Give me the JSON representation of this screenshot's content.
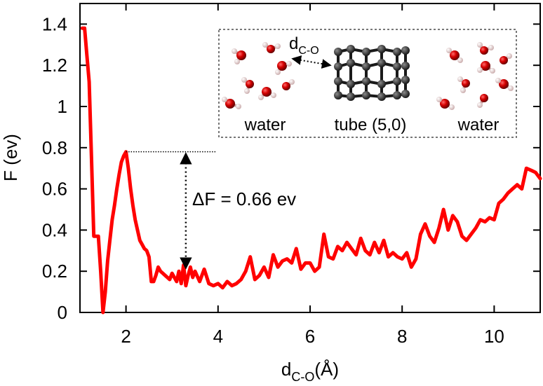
{
  "chart_data": {
    "type": "line",
    "title": "",
    "xlabel_main": "d",
    "xlabel_sub": "C-O",
    "xlabel_unit": "(Å)",
    "ylabel": "F (ev)",
    "xlim": [
      1.0,
      11.0
    ],
    "ylim": [
      0.0,
      1.5
    ],
    "xticks": [
      2,
      4,
      6,
      8,
      10
    ],
    "yticks": [
      0,
      0.2,
      0.4,
      0.6,
      0.8,
      1,
      1.2,
      1.4
    ],
    "xtick_labels": [
      "2",
      "4",
      "6",
      "8",
      "10"
    ],
    "ytick_labels": [
      "0",
      "0.2",
      "0.4",
      "0.6",
      "0.8",
      "1",
      "1.2",
      "1.4"
    ],
    "line_color": "#ff0000",
    "series": [
      {
        "name": "F",
        "x": [
          1.05,
          1.1,
          1.15,
          1.2,
          1.25,
          1.3,
          1.35,
          1.4,
          1.45,
          1.5,
          1.55,
          1.6,
          1.65,
          1.7,
          1.75,
          1.8,
          1.85,
          1.9,
          1.95,
          2.0,
          2.05,
          2.1,
          2.15,
          2.2,
          2.25,
          2.3,
          2.35,
          2.4,
          2.45,
          2.5,
          2.55,
          2.6,
          2.65,
          2.7,
          2.75,
          2.8,
          2.85,
          2.9,
          2.95,
          3.0,
          3.05,
          3.1,
          3.15,
          3.2,
          3.25,
          3.3,
          3.35,
          3.4,
          3.45,
          3.5,
          3.6,
          3.7,
          3.8,
          3.9,
          4.0,
          4.1,
          4.2,
          4.3,
          4.4,
          4.5,
          4.6,
          4.7,
          4.8,
          4.9,
          5.0,
          5.1,
          5.2,
          5.3,
          5.4,
          5.5,
          5.6,
          5.7,
          5.8,
          5.9,
          6.0,
          6.1,
          6.2,
          6.3,
          6.4,
          6.5,
          6.6,
          6.7,
          6.8,
          6.9,
          7.0,
          7.1,
          7.2,
          7.3,
          7.4,
          7.5,
          7.6,
          7.7,
          7.8,
          7.9,
          8.0,
          8.1,
          8.2,
          8.3,
          8.4,
          8.5,
          8.6,
          8.7,
          8.8,
          8.9,
          9.0,
          9.1,
          9.2,
          9.3,
          9.4,
          9.5,
          9.6,
          9.7,
          9.8,
          9.9,
          10.0,
          10.1,
          10.2,
          10.3,
          10.4,
          10.5,
          10.6,
          10.7,
          10.8,
          10.9,
          11.0
        ],
        "y": [
          1.38,
          1.38,
          1.25,
          1.12,
          0.75,
          0.37,
          0.37,
          0.37,
          0.2,
          0.0,
          0.1,
          0.25,
          0.35,
          0.45,
          0.52,
          0.6,
          0.67,
          0.73,
          0.76,
          0.78,
          0.7,
          0.6,
          0.52,
          0.45,
          0.4,
          0.35,
          0.33,
          0.31,
          0.3,
          0.27,
          0.15,
          0.15,
          0.18,
          0.22,
          0.2,
          0.19,
          0.18,
          0.17,
          0.16,
          0.19,
          0.17,
          0.15,
          0.2,
          0.14,
          0.23,
          0.13,
          0.18,
          0.22,
          0.17,
          0.2,
          0.15,
          0.21,
          0.14,
          0.13,
          0.14,
          0.12,
          0.15,
          0.13,
          0.14,
          0.16,
          0.2,
          0.27,
          0.16,
          0.18,
          0.22,
          0.17,
          0.28,
          0.22,
          0.25,
          0.26,
          0.24,
          0.31,
          0.21,
          0.24,
          0.24,
          0.2,
          0.22,
          0.38,
          0.27,
          0.26,
          0.32,
          0.3,
          0.34,
          0.31,
          0.28,
          0.36,
          0.3,
          0.28,
          0.34,
          0.29,
          0.35,
          0.27,
          0.29,
          0.27,
          0.26,
          0.29,
          0.22,
          0.26,
          0.38,
          0.43,
          0.37,
          0.34,
          0.41,
          0.5,
          0.4,
          0.47,
          0.44,
          0.37,
          0.35,
          0.38,
          0.41,
          0.45,
          0.44,
          0.46,
          0.45,
          0.53,
          0.55,
          0.58,
          0.6,
          0.62,
          0.6,
          0.7,
          0.69,
          0.68,
          0.65
        ]
      }
    ],
    "annotations": {
      "barrier_label": "ΔF = 0.66 ev",
      "barrier_top_value": 0.78,
      "barrier_bottom_value": 0.12,
      "barrier_x_value": 3.3,
      "hline_x_start": 2.0,
      "hline_x_end": 3.95
    },
    "inset": {
      "left_label": "water",
      "center_label": "tube (5,0)",
      "right_label": "water",
      "distance_label_main": "d",
      "distance_label_sub": "C-O",
      "oxygen_color": "#cc0000",
      "hydrogen_color": "#f0d8d8",
      "carbon_color": "#222222"
    }
  }
}
